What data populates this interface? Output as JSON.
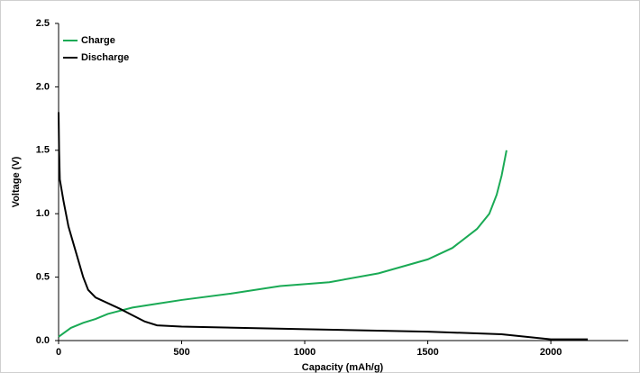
{
  "chart_data": {
    "type": "line",
    "x_label": "Capacity (mAh/g)",
    "y_label": "Voltage (V)",
    "xlim": [
      0,
      2300
    ],
    "xticks": [
      0,
      500,
      1000,
      1500,
      2000
    ],
    "ylim": [
      0,
      2.5
    ],
    "yticks": [
      {
        "value": 0,
        "label": "0.0"
      },
      0.5,
      {
        "value": 1,
        "label": "1.0"
      },
      1.5,
      {
        "value": 2,
        "label": "2.0"
      },
      2.5
    ],
    "legend": "upper left",
    "series": [
      {
        "name": "Charge",
        "color": "#1aaa55",
        "x": [
          0,
          50,
          100,
          150,
          200,
          300,
          400,
          500,
          700,
          900,
          1100,
          1300,
          1500,
          1600,
          1700,
          1750,
          1780,
          1800,
          1820
        ],
        "values": [
          0.03,
          0.1,
          0.14,
          0.17,
          0.21,
          0.26,
          0.29,
          0.32,
          0.37,
          0.43,
          0.46,
          0.53,
          0.64,
          0.73,
          0.88,
          1.0,
          1.15,
          1.3,
          1.5
        ]
      },
      {
        "name": "Discharge",
        "color": "#000000",
        "x": [
          0,
          2,
          5,
          20,
          40,
          70,
          100,
          120,
          150,
          250,
          300,
          350,
          400,
          500,
          1000,
          1500,
          1800,
          2000,
          2150
        ],
        "values": [
          1.8,
          1.5,
          1.27,
          1.1,
          0.9,
          0.7,
          0.5,
          0.4,
          0.34,
          0.25,
          0.2,
          0.15,
          0.12,
          0.11,
          0.09,
          0.07,
          0.05,
          0.01,
          0.01
        ]
      }
    ]
  }
}
